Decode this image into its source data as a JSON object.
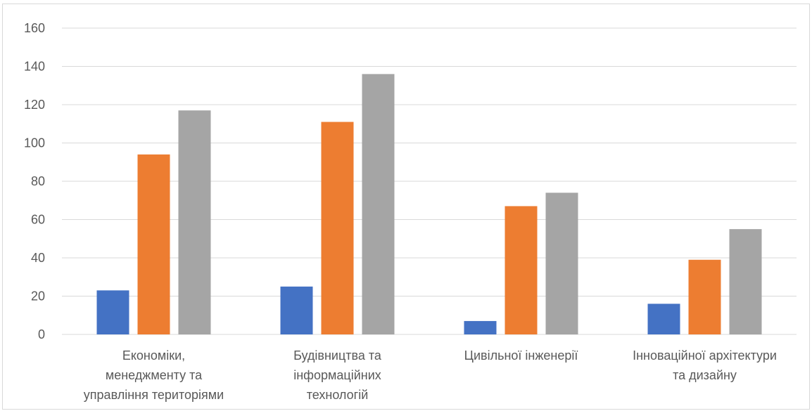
{
  "chart_data": {
    "type": "bar",
    "title": "",
    "xlabel": "",
    "ylabel": "",
    "ylim": [
      0,
      160
    ],
    "yticks": [
      0,
      20,
      40,
      60,
      80,
      100,
      120,
      140,
      160
    ],
    "grid": true,
    "legend": "none",
    "categories": [
      [
        "Економіки,",
        "менеджменту та",
        "управління територіями"
      ],
      [
        "Будівництва та",
        "інформаційних",
        "технологій"
      ],
      [
        "Цивільної інженерії"
      ],
      [
        "Інноваційної архітектури",
        "та дизайну"
      ]
    ],
    "series": [
      {
        "color": "#4472c4",
        "values": [
          23,
          25,
          7,
          16
        ]
      },
      {
        "color": "#ed7d31",
        "values": [
          94,
          111,
          67,
          39
        ]
      },
      {
        "color": "#a5a5a5",
        "values": [
          117,
          136,
          74,
          55
        ]
      }
    ]
  }
}
